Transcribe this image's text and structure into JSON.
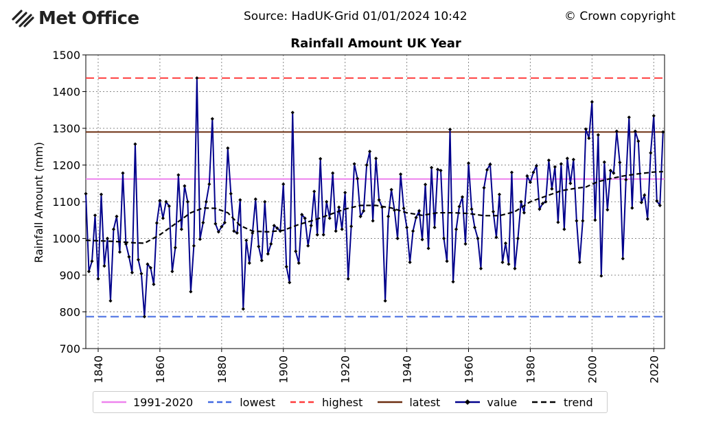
{
  "header": {
    "logo_text": "Met Office",
    "source": "Source: HadUK-Grid 01/01/2024 10:42",
    "copyright": "© Crown copyright"
  },
  "chart_data": {
    "type": "line",
    "title": "Rainfall Amount UK Year",
    "ylabel": "Rainfall Amount (mm)",
    "xlabel": "",
    "xlim": [
      1836,
      2023.5
    ],
    "ylim": [
      700,
      1500
    ],
    "yticks": [
      700,
      800,
      900,
      1000,
      1100,
      1200,
      1300,
      1400,
      1500
    ],
    "xticks": [
      1840,
      1860,
      1880,
      1900,
      1920,
      1940,
      1960,
      1980,
      2000,
      2020
    ],
    "grid": true,
    "legend_position": "bottom",
    "reference_lines": [
      {
        "name": "1991-2020",
        "value": 1162,
        "color": "#ee82ee",
        "style": "solid"
      },
      {
        "name": "lowest",
        "value": 787,
        "color": "#4169e1",
        "style": "dashed"
      },
      {
        "name": "highest",
        "value": 1437,
        "color": "#ff3b3b",
        "style": "dashed"
      },
      {
        "name": "latest",
        "value": 1290,
        "color": "#6b2d0f",
        "style": "solid"
      }
    ],
    "series": [
      {
        "name": "value",
        "color": "#00008b",
        "x_start": 1836,
        "values": [
          1122,
          910,
          938,
          1063,
          890,
          1120,
          925,
          1000,
          830,
          1025,
          1060,
          963,
          1178,
          985,
          950,
          907,
          1257,
          942,
          904,
          787,
          930,
          920,
          875,
          1042,
          1103,
          1055,
          1100,
          1088,
          910,
          975,
          1173,
          1025,
          1143,
          1100,
          855,
          980,
          1437,
          998,
          1043,
          1100,
          1148,
          1326,
          1040,
          1018,
          1032,
          1043,
          1246,
          1122,
          1020,
          1015,
          1105,
          808,
          995,
          933,
          1015,
          1107,
          978,
          940,
          1100,
          958,
          985,
          1035,
          1028,
          1020,
          1148,
          923,
          880,
          1343,
          965,
          933,
          1065,
          1055,
          980,
          1035,
          1128,
          1010,
          1217,
          1010,
          1100,
          1055,
          1178,
          1020,
          1085,
          1025,
          1125,
          890,
          1033,
          1203,
          1163,
          1060,
          1075,
          1200,
          1237,
          1048,
          1218,
          1105,
          1085,
          830,
          1060,
          1133,
          1077,
          1000,
          1175,
          1082,
          1030,
          935,
          1020,
          1057,
          1075,
          997,
          1147,
          973,
          1193,
          1030,
          1188,
          1185,
          1000,
          938,
          1297,
          882,
          1025,
          1087,
          1113,
          985,
          1205,
          1080,
          1030,
          1000,
          918,
          1138,
          1187,
          1202,
          1073,
          1003,
          1120,
          935,
          987,
          930,
          1180,
          918,
          1000,
          1100,
          1070,
          1170,
          1153,
          1180,
          1198,
          1080,
          1095,
          1100,
          1213,
          1135,
          1195,
          1044,
          1203,
          1025,
          1218,
          1150,
          1215,
          1048,
          935,
          1048,
          1298,
          1273,
          1372,
          1050,
          1282,
          898,
          1208,
          1078,
          1185,
          1178,
          1292,
          1207,
          945,
          1160,
          1330,
          1083,
          1292,
          1265,
          1098,
          1118,
          1053,
          1233,
          1334,
          1102,
          1090,
          1290
        ]
      },
      {
        "name": "trend",
        "color": "#000000",
        "style": "dashed",
        "points": [
          [
            1836,
            995
          ],
          [
            1845,
            992
          ],
          [
            1852,
            988
          ],
          [
            1855,
            987
          ],
          [
            1860,
            1010
          ],
          [
            1865,
            1040
          ],
          [
            1870,
            1070
          ],
          [
            1874,
            1083
          ],
          [
            1878,
            1082
          ],
          [
            1882,
            1070
          ],
          [
            1886,
            1035
          ],
          [
            1890,
            1020
          ],
          [
            1895,
            1018
          ],
          [
            1900,
            1022
          ],
          [
            1905,
            1038
          ],
          [
            1910,
            1050
          ],
          [
            1915,
            1065
          ],
          [
            1920,
            1080
          ],
          [
            1925,
            1090
          ],
          [
            1930,
            1090
          ],
          [
            1935,
            1083
          ],
          [
            1940,
            1070
          ],
          [
            1945,
            1063
          ],
          [
            1950,
            1070
          ],
          [
            1955,
            1070
          ],
          [
            1960,
            1068
          ],
          [
            1965,
            1062
          ],
          [
            1970,
            1062
          ],
          [
            1975,
            1073
          ],
          [
            1980,
            1100
          ],
          [
            1985,
            1115
          ],
          [
            1990,
            1130
          ],
          [
            1995,
            1137
          ],
          [
            1998,
            1140
          ],
          [
            2002,
            1155
          ],
          [
            2006,
            1163
          ],
          [
            2010,
            1170
          ],
          [
            2015,
            1176
          ],
          [
            2020,
            1181
          ],
          [
            2023,
            1182
          ]
        ]
      }
    ],
    "legend": [
      "1991-2020",
      "lowest",
      "highest",
      "latest",
      "value",
      "trend"
    ]
  }
}
